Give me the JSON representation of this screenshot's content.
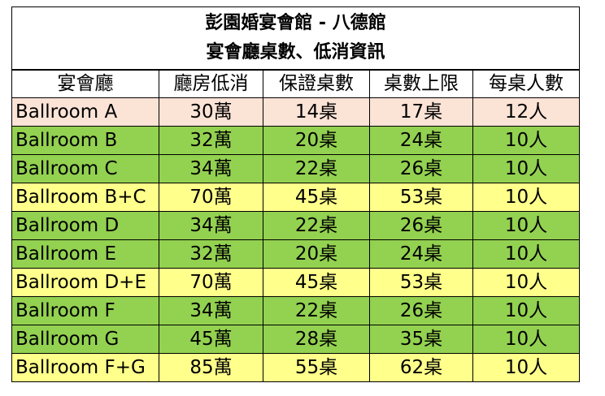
{
  "title_line1": "彭園婚宴會館 - 八德館",
  "title_line2": "宴會廳桌數、低消資訊",
  "columns": [
    "宴會廳",
    "廳房低消",
    "保證桌數",
    "桌數上限",
    "每桌人數"
  ],
  "colors": {
    "pink": "#fbe3d6",
    "green": "#93d150",
    "yellow": "#ffff8b",
    "header": "#ffffff"
  },
  "rows": [
    {
      "name": "Ballroom A",
      "min_spend": "30萬",
      "guaranteed": "14桌",
      "max": "17桌",
      "per_table": "12人",
      "color": "pink"
    },
    {
      "name": "Ballroom B",
      "min_spend": "32萬",
      "guaranteed": "20桌",
      "max": "24桌",
      "per_table": "10人",
      "color": "green"
    },
    {
      "name": "Ballroom C",
      "min_spend": "34萬",
      "guaranteed": "22桌",
      "max": "26桌",
      "per_table": "10人",
      "color": "green"
    },
    {
      "name": "Ballroom B+C",
      "min_spend": "70萬",
      "guaranteed": "45桌",
      "max": "53桌",
      "per_table": "10人",
      "color": "yellow"
    },
    {
      "name": "Ballroom D",
      "min_spend": "34萬",
      "guaranteed": "22桌",
      "max": "26桌",
      "per_table": "10人",
      "color": "green"
    },
    {
      "name": "Ballroom E",
      "min_spend": "32萬",
      "guaranteed": "20桌",
      "max": "24桌",
      "per_table": "10人",
      "color": "green"
    },
    {
      "name": "Ballroom D+E",
      "min_spend": "70萬",
      "guaranteed": "45桌",
      "max": "53桌",
      "per_table": "10人",
      "color": "yellow"
    },
    {
      "name": "Ballroom F",
      "min_spend": "34萬",
      "guaranteed": "22桌",
      "max": "26桌",
      "per_table": "10人",
      "color": "green"
    },
    {
      "name": "Ballroom G",
      "min_spend": "45萬",
      "guaranteed": "28桌",
      "max": "35桌",
      "per_table": "10人",
      "color": "green"
    },
    {
      "name": "Ballroom F+G",
      "min_spend": "85萬",
      "guaranteed": "55桌",
      "max": "62桌",
      "per_table": "10人",
      "color": "yellow"
    }
  ]
}
